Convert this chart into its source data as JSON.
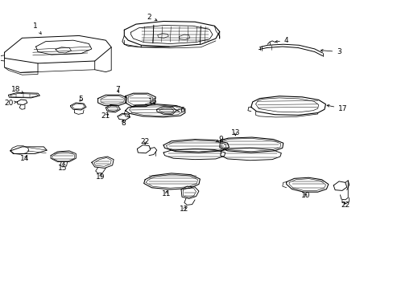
{
  "bg": "#ffffff",
  "lc": "#000000",
  "fw": 4.89,
  "fh": 3.6,
  "dpi": 100
}
